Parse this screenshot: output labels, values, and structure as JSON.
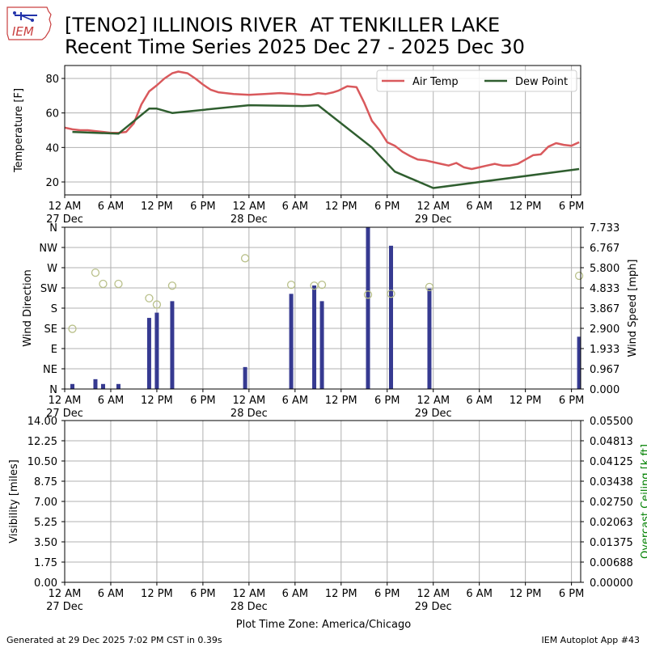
{
  "header": {
    "title_line1": "[TENO2] ILLINOIS RIVER  AT TENKILLER LAKE",
    "title_line2": "Recent Time Series 2025 Dec 27 - 2025 Dec 30",
    "logo_text": "IEM"
  },
  "footer": {
    "generated": "Generated at 29 Dec 2025 7:02 PM CST in 0.39s",
    "app": "IEM Autoplot App #43"
  },
  "colors": {
    "air_temp": "#d9595c",
    "dew_point": "#2f5e2f",
    "wind_speed_bar": "#363a91",
    "wind_dir_marker": "#b9c08a",
    "ceiling_label": "#008000",
    "grid": "#b0b0b0"
  },
  "chart_data": [
    {
      "type": "line",
      "panel": "temperature",
      "x_unit": "hours since 2025-12-27 00:00",
      "xlim": [
        0,
        67.2
      ],
      "ylim": [
        12.5,
        87.5
      ],
      "ylabel": "Temperature [F]",
      "yticks": [
        20,
        40,
        60,
        80
      ],
      "legend_placement": "top-right",
      "grid": true,
      "series": [
        {
          "name": "Air Temp",
          "x": [
            0,
            1,
            2,
            3,
            4,
            5,
            6,
            7,
            8,
            9,
            10,
            11,
            12,
            13,
            14,
            14.8,
            16,
            17,
            18,
            19,
            20,
            22,
            24,
            26,
            28,
            30,
            31,
            32,
            33,
            34,
            35,
            35.7,
            36.8,
            38,
            39,
            40,
            41,
            42,
            43,
            44,
            45,
            46,
            47,
            48,
            49,
            50,
            51,
            52,
            53,
            54,
            55,
            56,
            57,
            58,
            59,
            60,
            61,
            62,
            63,
            64,
            65,
            66,
            67
          ],
          "values": [
            51.5,
            50.5,
            50,
            50,
            49.5,
            49,
            48.5,
            48.5,
            49,
            54,
            65,
            72.5,
            76,
            80,
            83,
            84,
            83,
            80,
            76.5,
            73.5,
            72,
            71,
            70.5,
            71,
            71.5,
            71,
            70.5,
            70.5,
            71.5,
            71,
            72,
            73,
            75.5,
            75,
            66,
            55.5,
            50,
            43,
            41,
            37.5,
            35,
            33,
            32.5,
            31.5,
            30.5,
            29.5,
            31,
            28.5,
            27.5,
            28.5,
            29.5,
            30.5,
            29.5,
            29.5,
            30.5,
            33,
            35.5,
            36,
            40.5,
            42.5,
            41.5,
            41,
            43
          ]
        },
        {
          "name": "Dew Point",
          "x": [
            1,
            7,
            11,
            12,
            14,
            24,
            31,
            33,
            40,
            43,
            48,
            67
          ],
          "values": [
            49,
            48,
            62.5,
            62.5,
            60,
            64.5,
            64,
            64.5,
            40,
            26,
            16.5,
            27.5
          ]
        }
      ]
    },
    {
      "type": "bar",
      "panel": "wind",
      "x_unit": "hours since 2025-12-27 00:00",
      "xlim": [
        0,
        67.2
      ],
      "ylabel_left": "Wind Direction",
      "ylabel_right": "Wind Speed [mph]",
      "direction_ticks": [
        "N",
        "NE",
        "E",
        "SE",
        "S",
        "SW",
        "W",
        "NW",
        "N"
      ],
      "speed_ticks": [
        "0.000",
        "0.967",
        "1.933",
        "2.900",
        "3.867",
        "4.833",
        "5.800",
        "6.767",
        "7.733"
      ],
      "speed_lim": [
        0,
        7.733
      ],
      "grid": true,
      "wind_speed": {
        "x": [
          1,
          4,
          5,
          7,
          11,
          12,
          14,
          23.5,
          29.5,
          32.5,
          33.5,
          39.5,
          42.5,
          47.5,
          67
        ],
        "values": [
          0.24,
          0.47,
          0.24,
          0.24,
          3.4,
          3.65,
          4.2,
          1.05,
          4.55,
          4.95,
          4.2,
          7.8,
          6.85,
          4.8,
          2.5
        ]
      },
      "wind_direction": {
        "x": [
          1,
          4,
          5,
          7,
          11,
          12,
          14,
          23.5,
          29.5,
          32.5,
          33.5,
          39.5,
          42.5,
          47.5,
          67
        ],
        "values_deg": [
          134,
          259,
          234,
          234,
          202,
          188,
          230,
          291,
          232,
          230,
          232,
          210,
          212,
          227,
          252
        ]
      }
    },
    {
      "type": "line",
      "panel": "visibility",
      "x_unit": "hours since 2025-12-27 00:00",
      "xlim": [
        0,
        67.2
      ],
      "ylabel_left": "Visibility [miles]",
      "ylabel_right": "Overcast Ceiling [k ft]",
      "yticks_left": [
        "0.00",
        "1.75",
        "3.50",
        "5.25",
        "7.00",
        "8.75",
        "10.50",
        "12.25",
        "14.00"
      ],
      "yticks_right": [
        "0.00000",
        "0.00688",
        "0.01375",
        "0.02063",
        "0.02750",
        "0.03438",
        "0.04125",
        "0.04813",
        "0.05500"
      ],
      "ylim_left": [
        0,
        14
      ],
      "ylim_right": [
        0,
        0.055
      ],
      "grid": true,
      "series": []
    }
  ],
  "xaxis": {
    "xlabel": "Plot Time Zone: America/Chicago",
    "tick_hours": [
      0,
      6,
      12,
      18,
      24,
      30,
      36,
      42,
      48,
      54,
      60,
      66
    ],
    "tick_labels": [
      "12 AM",
      "6 AM",
      "12 PM",
      "6 PM",
      "12 AM",
      "6 AM",
      "12 PM",
      "6 PM",
      "12 AM",
      "6 AM",
      "12 PM",
      "6 PM"
    ],
    "date_labels": [
      {
        "hour": 0,
        "text": "27 Dec"
      },
      {
        "hour": 24,
        "text": "28 Dec"
      },
      {
        "hour": 48,
        "text": "29 Dec"
      }
    ]
  }
}
